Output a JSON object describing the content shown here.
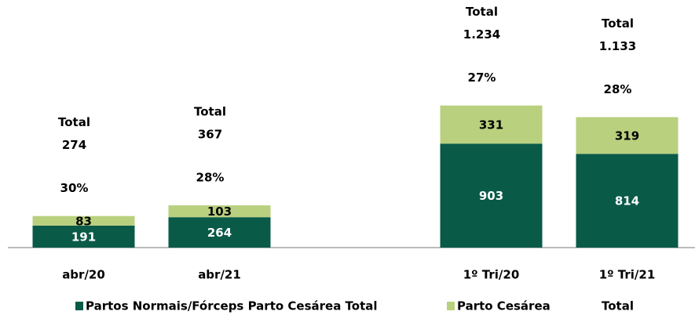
{
  "chart_data": {
    "type": "bar",
    "stacked": true,
    "categories": [
      "abr/20",
      "abr/21",
      null,
      "1º Tri/20",
      "1º Tri/21"
    ],
    "series": [
      {
        "name": "Partos Normais/Fórceps Parto Cesárea Total",
        "color": "#0a5a48",
        "label_color": "#ffffff",
        "values": [
          191,
          264,
          null,
          903,
          814
        ]
      },
      {
        "name": "Parto Cesárea",
        "color": "#b9d07e",
        "label_color": "#000000",
        "values": [
          83,
          103,
          null,
          331,
          319
        ]
      },
      {
        "name": "Total",
        "values": [
          274,
          367,
          null,
          1234,
          1133
        ],
        "value_labels": [
          "274",
          "367",
          null,
          "1.234",
          "1.133"
        ]
      }
    ],
    "shares": {
      "values": [
        30,
        28,
        null,
        27,
        28
      ],
      "value_labels": [
        "30%",
        "28%",
        null,
        "27%",
        "28%"
      ]
    },
    "ylim": [
      0,
      2150
    ]
  }
}
